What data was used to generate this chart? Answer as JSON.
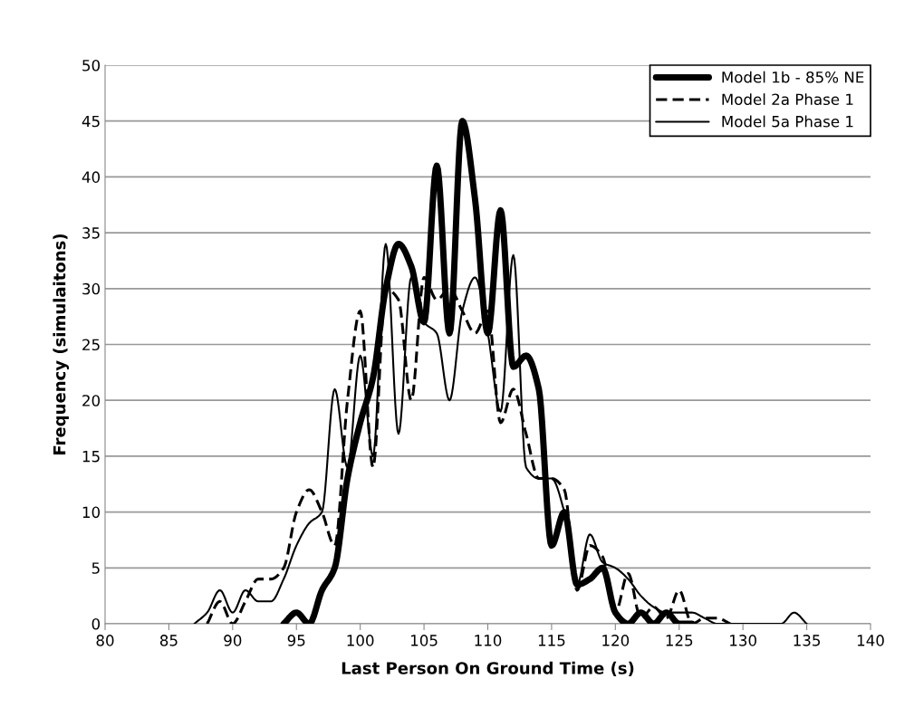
{
  "chart_data": {
    "type": "line",
    "xlabel": "Last Person On Ground Time (s)",
    "ylabel": "Frequency (simulaitons)",
    "xlim": [
      80,
      140
    ],
    "xticks": [
      80,
      85,
      90,
      95,
      100,
      105,
      110,
      115,
      120,
      125,
      130,
      135,
      140
    ],
    "ylim": [
      0,
      50
    ],
    "yticks": [
      0,
      5,
      10,
      15,
      20,
      25,
      30,
      35,
      40,
      45,
      50
    ],
    "grid": "y",
    "legend": "top right",
    "series": [
      {
        "name": "Model 1b - 85% NE",
        "color": "#000000",
        "line_style": "solid",
        "x": [
          94,
          95,
          96,
          97,
          98,
          99,
          100,
          101,
          102,
          103,
          104,
          105,
          106,
          107,
          108,
          109,
          110,
          111,
          112,
          113,
          114,
          115,
          116,
          117,
          118,
          119,
          120,
          121,
          122,
          123,
          124,
          125,
          126
        ],
        "values": [
          0,
          1,
          0,
          3,
          5,
          13,
          18,
          22,
          30,
          34,
          32,
          27,
          41,
          26,
          45,
          38,
          26,
          37,
          23,
          24,
          21,
          7,
          10,
          3.5,
          4,
          5,
          1,
          0,
          1,
          0,
          1,
          0,
          0
        ]
      },
      {
        "name": "Model 2a Phase 1",
        "color": "#000000",
        "line_style": "dashed",
        "x": [
          88,
          89,
          90,
          91,
          92,
          93,
          94,
          95,
          96,
          97,
          98,
          99,
          100,
          101,
          102,
          103,
          104,
          105,
          106,
          107,
          108,
          109,
          110,
          111,
          112,
          113,
          114,
          115,
          116,
          117,
          118,
          119,
          120,
          121,
          122,
          123,
          124,
          125,
          126,
          127,
          128,
          129
        ],
        "values": [
          0,
          2,
          0,
          2,
          4,
          4,
          5,
          10,
          12,
          10,
          7,
          20,
          28,
          14,
          30,
          29,
          20,
          31,
          29,
          30,
          28,
          26,
          28,
          18,
          21,
          17,
          13,
          13,
          12,
          3,
          7,
          6,
          1,
          4.5,
          0.5,
          1.5,
          0.5,
          3,
          0,
          0.5,
          0.5,
          0
        ]
      },
      {
        "name": "Model 5a Phase 1",
        "color": "#000000",
        "line_style": "solid",
        "x": [
          87,
          88,
          89,
          90,
          91,
          92,
          93,
          94,
          95,
          96,
          97,
          98,
          99,
          100,
          101,
          102,
          103,
          104,
          105,
          106,
          107,
          108,
          109,
          110,
          111,
          112,
          113,
          114,
          115,
          116,
          117,
          118,
          119,
          120,
          121,
          122,
          123,
          124,
          125,
          126,
          127,
          128,
          129,
          130,
          131,
          132,
          133,
          134,
          135
        ],
        "values": [
          0,
          1,
          3,
          1,
          3,
          2,
          2,
          4,
          7,
          9,
          10,
          21,
          14,
          24,
          15,
          34,
          17,
          31,
          27,
          26,
          20,
          28,
          31,
          26,
          19,
          33,
          14,
          13,
          13,
          10,
          3.5,
          8,
          5.5,
          5,
          4,
          2.5,
          1.5,
          1,
          1,
          1,
          0.5,
          0,
          0,
          0,
          0,
          0,
          0,
          1,
          0
        ]
      }
    ]
  }
}
